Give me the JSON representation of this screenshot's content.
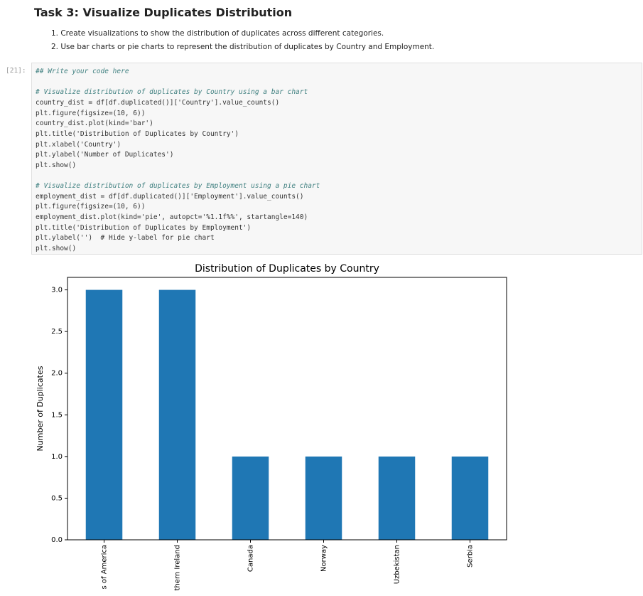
{
  "header": {
    "title": "Task 3: Visualize Duplicates Distribution"
  },
  "instructions": [
    "1. Create visualizations to show the distribution of duplicates across different categories.",
    "2. Use bar charts or pie charts to represent the distribution of duplicates by Country and Employment."
  ],
  "cell": {
    "prompt": "[21]:",
    "code_blocks": [
      [
        "## Write your code here"
      ],
      [
        "# Visualize distribution of duplicates by Country using a bar chart",
        "country_dist = df[df.duplicated()]['Country'].value_counts()",
        "plt.figure(figsize=(10, 6))",
        "country_dist.plot(kind='bar')",
        "plt.title('Distribution of Duplicates by Country')",
        "plt.xlabel('Country')",
        "plt.ylabel('Number of Duplicates')",
        "plt.show()"
      ],
      [
        "# Visualize distribution of duplicates by Employment using a pie chart",
        "employment_dist = df[df.duplicated()]['Employment'].value_counts()",
        "plt.figure(figsize=(10, 6))",
        "employment_dist.plot(kind='pie', autopct='%1.1f%%', startangle=140)",
        "plt.title('Distribution of Duplicates by Employment')",
        "plt.ylabel('')  # Hide y-label for pie chart",
        "plt.show()"
      ]
    ]
  },
  "chart_data": {
    "type": "bar",
    "title": "Distribution of Duplicates by Country",
    "y_label": "Number of Duplicates",
    "categories": [
      "s of America",
      "thern Ireland",
      "Canada",
      "Norway",
      "Uzbekistan",
      "Serbia"
    ],
    "values": [
      3,
      3,
      1,
      1,
      1,
      1
    ],
    "color": "#1f77b4",
    "ylim": [
      0,
      3.15
    ],
    "yticks": [
      {
        "value": 0,
        "label": "0.0"
      },
      0.5,
      {
        "value": 1,
        "label": "1.0"
      },
      1.5,
      {
        "value": 2,
        "label": "2.0"
      },
      2.5,
      {
        "value": 3,
        "label": "3.0"
      }
    ]
  }
}
